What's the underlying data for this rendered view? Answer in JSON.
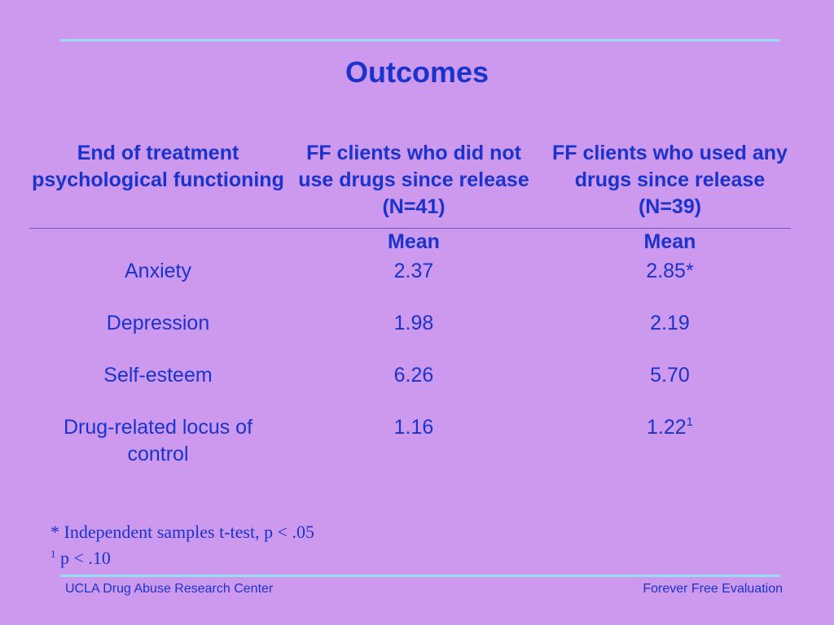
{
  "slide": {
    "title": "Outcomes"
  },
  "table": {
    "headers": [
      "End of treatment psychological functioning",
      "FF clients who did not use drugs since release (N=41)",
      "FF clients who used any drugs since release (N=39)"
    ],
    "subheader": [
      "",
      "Mean",
      "Mean"
    ],
    "rows": [
      {
        "measure": "Anxiety",
        "no_drugs": "2.37",
        "drugs": "2.85*",
        "drugs_marker": ""
      },
      {
        "measure": "Depression",
        "no_drugs": "1.98",
        "drugs": "2.19",
        "drugs_marker": ""
      },
      {
        "measure": "Self-esteem",
        "no_drugs": "6.26",
        "drugs": "5.70",
        "drugs_marker": ""
      },
      {
        "measure": "Drug-related locus of control",
        "no_drugs": "1.16",
        "drugs": "1.22",
        "drugs_marker": "1"
      }
    ]
  },
  "notes": {
    "note1": "* Independent samples t-test, p < .05",
    "note2_marker": "1",
    "note2_text": " p < .10"
  },
  "footer": {
    "left": "UCLA Drug Abuse Research Center",
    "right": "Forever Free Evaluation"
  },
  "colors": {
    "background": "#cc99ee",
    "text": "#1a33cc",
    "rule": "#99ddf2"
  }
}
